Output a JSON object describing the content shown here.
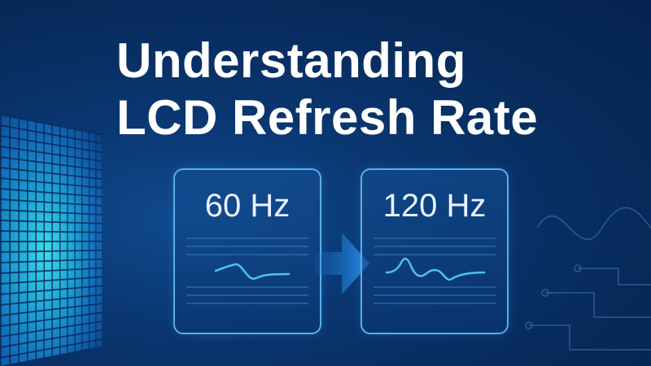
{
  "title": {
    "line1": "Understanding",
    "line2": "LCD Refresh Rate"
  },
  "cards": [
    {
      "label": "60 Hz"
    },
    {
      "label": "120 Hz"
    }
  ],
  "colors": {
    "background": "#0a3670",
    "accent": "#4fc0f5",
    "card_border": "#5aaee8",
    "title": "#ffffff"
  },
  "icons": [
    "arrow-right-icon",
    "waveform-icon",
    "pixel-grid-icon",
    "circuit-icon"
  ]
}
